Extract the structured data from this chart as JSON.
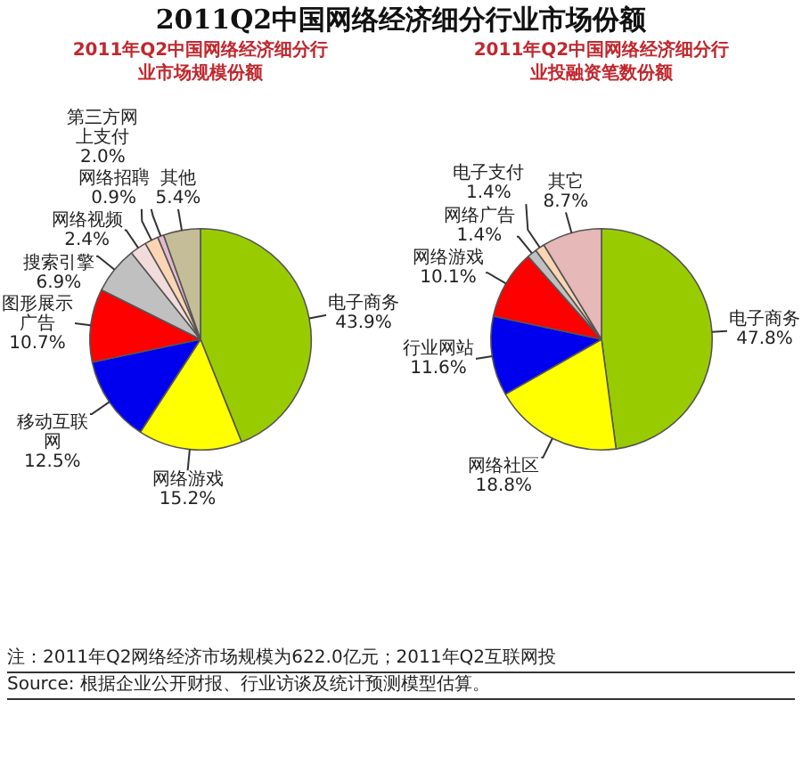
{
  "chart_data": [
    {
      "type": "pie",
      "title": "2011Q2中国网络经济细分行业市场份额",
      "subtitle": "2011年Q2中国网络经济细分行业市场规模份额",
      "categories": [
        "电子商务",
        "网络游戏",
        "移动互联网",
        "图形展示广告",
        "搜索引擎",
        "网络视频",
        "第三方网上支付",
        "网络招聘",
        "其他"
      ],
      "values": [
        43.9,
        15.2,
        12.5,
        10.7,
        6.9,
        2.4,
        2.0,
        0.9,
        5.4
      ],
      "value_labels": [
        "43.9%",
        "15.2%",
        "12.5%",
        "10.7%",
        "6.9%",
        "2.4%",
        "2.0%",
        "0.9%",
        "5.4%"
      ],
      "colors": [
        "#99cc00",
        "#ffff00",
        "#0000ee",
        "#ff0000",
        "#c0c0c0",
        "#f2dcdb",
        "#fcd5b4",
        "#e6b9d0",
        "#c4bd97"
      ],
      "annotations": [
        "注：2011年Q2网络经济市场规模为622.0亿元；2011年Q2互联网投",
        "Source: 根据企业公开财报、行业访谈及统计预测模型估算。"
      ]
    },
    {
      "type": "pie",
      "subtitle": "2011年Q2中国网络经济细分行业投融资笔数份额",
      "categories": [
        "电子商务",
        "网络社区",
        "行业网站",
        "网络游戏",
        "网络广告",
        "电子支付",
        "其它"
      ],
      "values": [
        47.8,
        18.8,
        11.6,
        10.1,
        1.4,
        1.4,
        8.7
      ],
      "value_labels": [
        "47.8%",
        "18.8%",
        "11.6%",
        "10.1%",
        "1.4%",
        "1.4%",
        "8.7%"
      ],
      "colors": [
        "#99cc00",
        "#ffff00",
        "#0000ee",
        "#ff0000",
        "#c0c0c0",
        "#fcd5b4",
        "#e6b8b7"
      ]
    }
  ]
}
